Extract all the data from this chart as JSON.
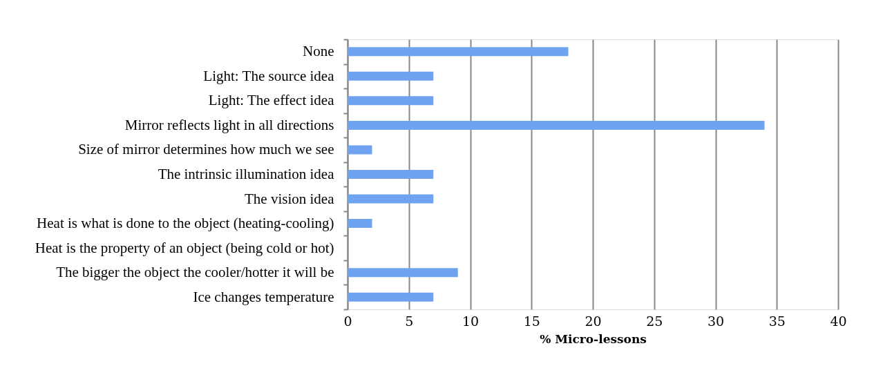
{
  "chart_data": {
    "type": "bar",
    "orientation": "horizontal",
    "xlabel": "% Micro-lessons",
    "categories": [
      "None",
      "Light: The source idea",
      "Light: The effect idea",
      "Mirror reflects light in all directions",
      "Size of mirror determines how much we see ",
      "The intrinsic illumination idea",
      "The vision idea",
      "Heat is what is done to the object (heating-cooling)",
      "Heat is the property of an object (being cold or hot)",
      "The bigger the object the cooler/hotter it will be",
      "Ice changes temperature"
    ],
    "values": [
      18,
      7,
      7,
      34,
      2,
      7,
      7,
      2,
      0,
      9,
      7
    ],
    "color": "#6fa3ef",
    "xlim": [
      0,
      40
    ],
    "xticks": [
      0,
      5,
      10,
      15,
      20,
      25,
      30,
      35,
      40
    ],
    "grid": "x"
  }
}
